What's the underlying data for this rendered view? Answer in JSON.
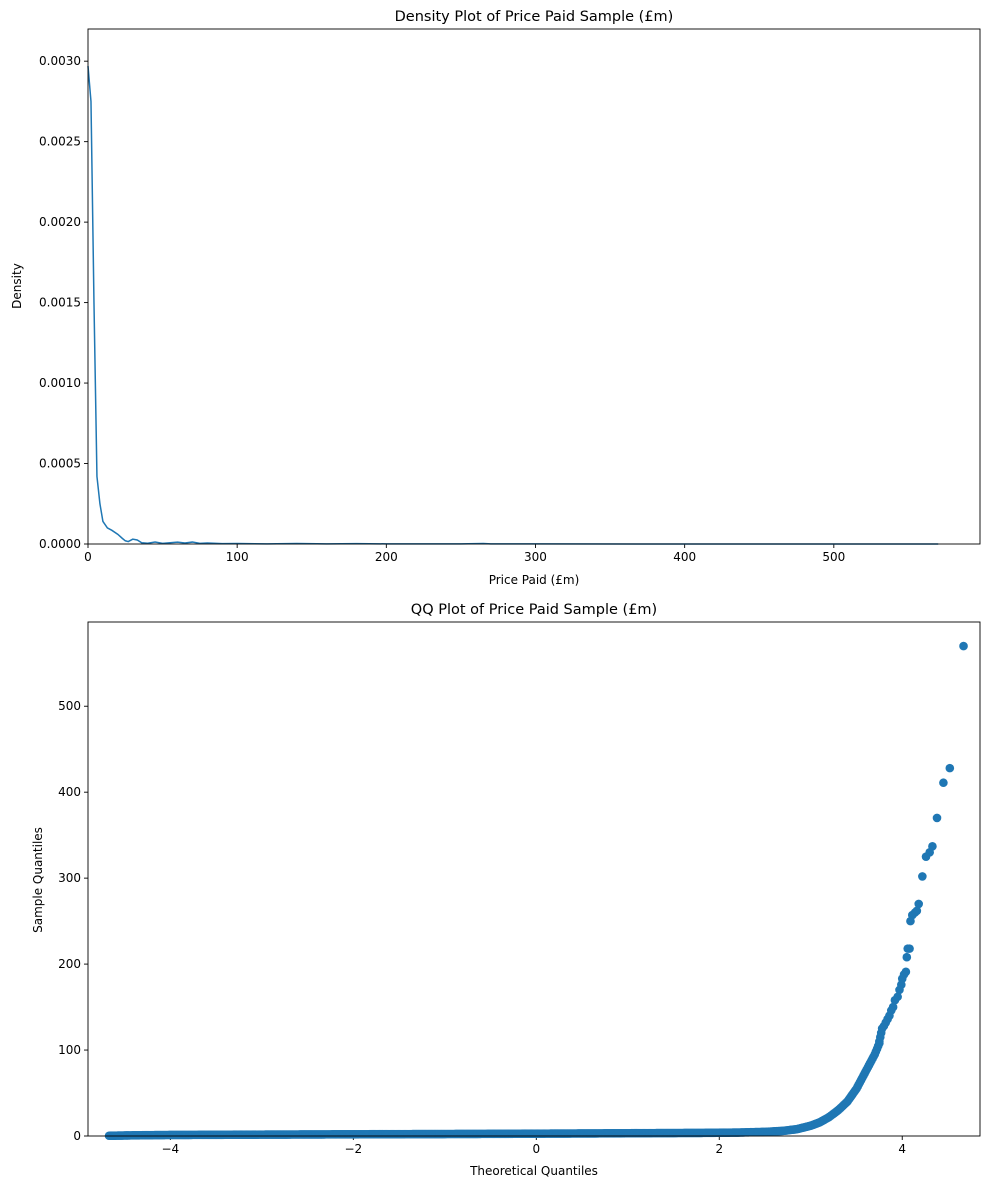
{
  "chart_data": [
    {
      "type": "line",
      "title": "Density Plot of Price Paid Sample (£m)",
      "xlabel": "Price Paid (£m)",
      "ylabel": "Density",
      "xlim": [
        0,
        598
      ],
      "ylim": [
        0,
        0.0032
      ],
      "xticks": [
        0,
        100,
        200,
        300,
        400,
        500
      ],
      "xtick_labels": [
        "0",
        "100",
        "200",
        "300",
        "400",
        "500"
      ],
      "yticks": [
        0,
        0.0005,
        0.001,
        0.0015,
        0.002,
        0.0025,
        0.003
      ],
      "ytick_labels": [
        "0.0000",
        "0.0005",
        "0.0010",
        "0.0015",
        "0.0020",
        "0.0025",
        "0.0030"
      ],
      "color": "#1f77b4",
      "x": [
        0,
        2,
        4,
        6,
        8,
        10,
        13,
        16,
        20,
        23,
        25,
        27,
        30,
        33,
        36,
        40,
        45,
        50,
        55,
        60,
        65,
        70,
        75,
        80,
        90,
        100,
        120,
        140,
        160,
        180,
        200,
        250,
        265,
        270,
        300,
        400,
        500,
        570
      ],
      "y": [
        0.00297,
        0.00275,
        0.0015,
        0.00042,
        0.00025,
        0.00014,
        0.0001,
        8.5e-05,
        6e-05,
        3.5e-05,
        2e-05,
        1.5e-05,
        3e-05,
        2.5e-05,
        8e-06,
        5e-06,
        1.2e-05,
        4e-06,
        8e-06,
        1.2e-05,
        6e-06,
        1.2e-05,
        4e-06,
        6e-06,
        2e-06,
        3e-06,
        1e-06,
        3e-06,
        1e-06,
        2e-06,
        1e-06,
        5e-07,
        3e-06,
        5e-07,
        5e-07,
        2e-07,
        2e-07,
        1e-07
      ]
    },
    {
      "type": "scatter",
      "title": "QQ Plot of Price Paid Sample (£m)",
      "xlabel": "Theoretical Quantiles",
      "ylabel": "Sample Quantiles",
      "xlim": [
        -4.9,
        4.85
      ],
      "ylim": [
        0,
        598
      ],
      "xticks": [
        -4,
        -2,
        0,
        2,
        4
      ],
      "xtick_labels": [
        "−4",
        "−2",
        "0",
        "2",
        "4"
      ],
      "yticks": [
        0,
        100,
        200,
        300,
        400,
        500
      ],
      "ytick_labels": [
        "0",
        "100",
        "200",
        "300",
        "400",
        "500"
      ],
      "color": "#1f77b4",
      "outliers": [
        [
          4.67,
          570
        ],
        [
          4.52,
          428
        ],
        [
          4.45,
          411
        ],
        [
          4.38,
          370
        ],
        [
          4.33,
          337
        ],
        [
          4.3,
          330
        ],
        [
          4.26,
          325
        ],
        [
          4.22,
          302
        ],
        [
          4.18,
          270
        ],
        [
          4.16,
          262
        ],
        [
          4.14,
          260
        ],
        [
          4.11,
          257
        ],
        [
          4.09,
          250
        ],
        [
          4.08,
          218
        ],
        [
          4.06,
          218
        ],
        [
          4.05,
          208
        ],
        [
          4.04,
          191
        ],
        [
          4.02,
          188
        ],
        [
          4.0,
          183
        ],
        [
          3.99,
          176
        ],
        [
          3.97,
          170
        ],
        [
          3.95,
          162
        ],
        [
          3.92,
          158
        ],
        [
          3.9,
          150
        ],
        [
          3.88,
          146
        ],
        [
          3.86,
          140
        ],
        [
          3.84,
          136
        ],
        [
          3.82,
          132
        ],
        [
          3.8,
          128
        ],
        [
          3.78,
          125
        ],
        [
          3.77,
          120
        ],
        [
          3.76,
          115
        ],
        [
          3.75,
          110
        ]
      ],
      "curve": [
        [
          -4.67,
          0.3
        ],
        [
          -4.55,
          0.5
        ],
        [
          -4.45,
          0.7
        ],
        [
          -4.3,
          0.9
        ],
        [
          -4.0,
          1.2
        ],
        [
          -3.0,
          1.6
        ],
        [
          -2.0,
          2.0
        ],
        [
          -1.0,
          2.3
        ],
        [
          0.0,
          2.7
        ],
        [
          1.0,
          3.2
        ],
        [
          1.8,
          3.6
        ],
        [
          2.2,
          4.0
        ],
        [
          2.5,
          4.8
        ],
        [
          2.7,
          6
        ],
        [
          2.85,
          8
        ],
        [
          3.0,
          12
        ],
        [
          3.1,
          16
        ],
        [
          3.2,
          22
        ],
        [
          3.3,
          30
        ],
        [
          3.4,
          40
        ],
        [
          3.5,
          55
        ],
        [
          3.6,
          75
        ],
        [
          3.7,
          95
        ],
        [
          3.75,
          108
        ]
      ]
    }
  ]
}
